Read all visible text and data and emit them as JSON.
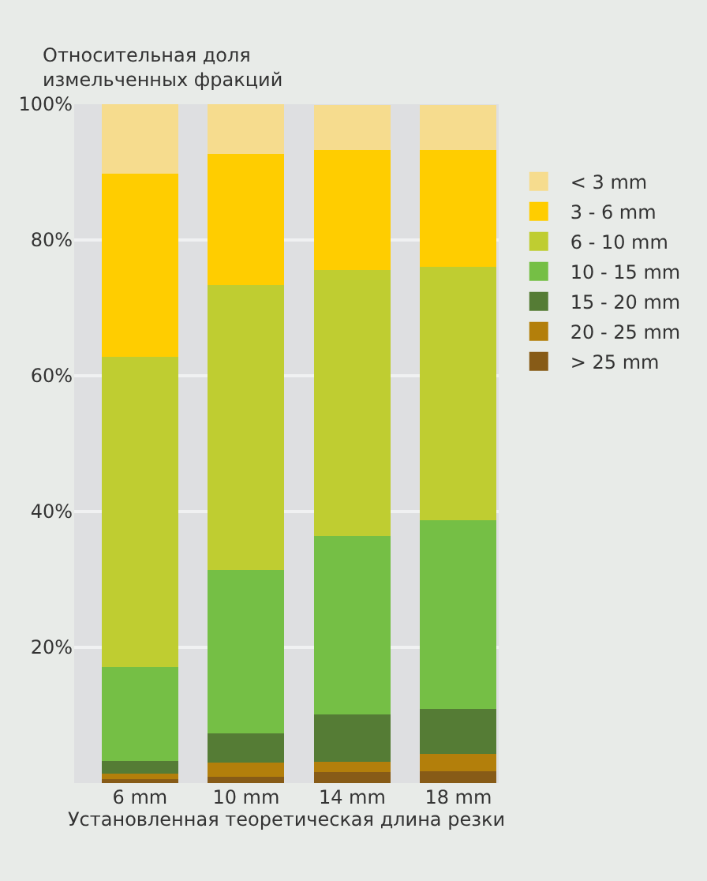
{
  "chart_data": {
    "type": "bar",
    "stacked": true,
    "ylabel": "Относительная доля\nизмельченных фракций",
    "xlabel": "Установленная теоретическая длина резки",
    "categories": [
      "6 mm",
      "10 mm",
      "14 mm",
      "18 mm"
    ],
    "series": [
      {
        "name": "> 25 mm",
        "color": "#875b17",
        "values": [
          0.6,
          0.9,
          1.6,
          1.8
        ]
      },
      {
        "name": "20 - 25 mm",
        "color": "#b37f0b",
        "values": [
          0.8,
          2.1,
          1.5,
          2.5
        ]
      },
      {
        "name": "15 - 20 mm",
        "color": "#557c35",
        "values": [
          1.8,
          4.3,
          7.0,
          6.6
        ]
      },
      {
        "name": "10 - 15 mm",
        "color": "#75bf45",
        "values": [
          13.9,
          24.1,
          26.3,
          27.8
        ]
      },
      {
        "name": "6 - 10 mm",
        "color": "#bfcd31",
        "values": [
          45.7,
          42.0,
          39.2,
          37.4
        ]
      },
      {
        "name": "3 - 6 mm",
        "color": "#ffcd00",
        "values": [
          27.0,
          19.3,
          17.6,
          17.1
        ]
      },
      {
        "name": "< 3 mm",
        "color": "#f6dc8e",
        "values": [
          10.2,
          7.3,
          6.7,
          6.7
        ]
      }
    ],
    "ylim": [
      0,
      100
    ],
    "yticks": [
      {
        "value": 20,
        "label": "20%"
      },
      {
        "value": 40,
        "label": "40%"
      },
      {
        "value": 60,
        "label": "60%"
      },
      {
        "value": 80,
        "label": "80%"
      },
      {
        "value": 100,
        "label": "100%"
      }
    ],
    "grid": "y",
    "legend": "right"
  }
}
